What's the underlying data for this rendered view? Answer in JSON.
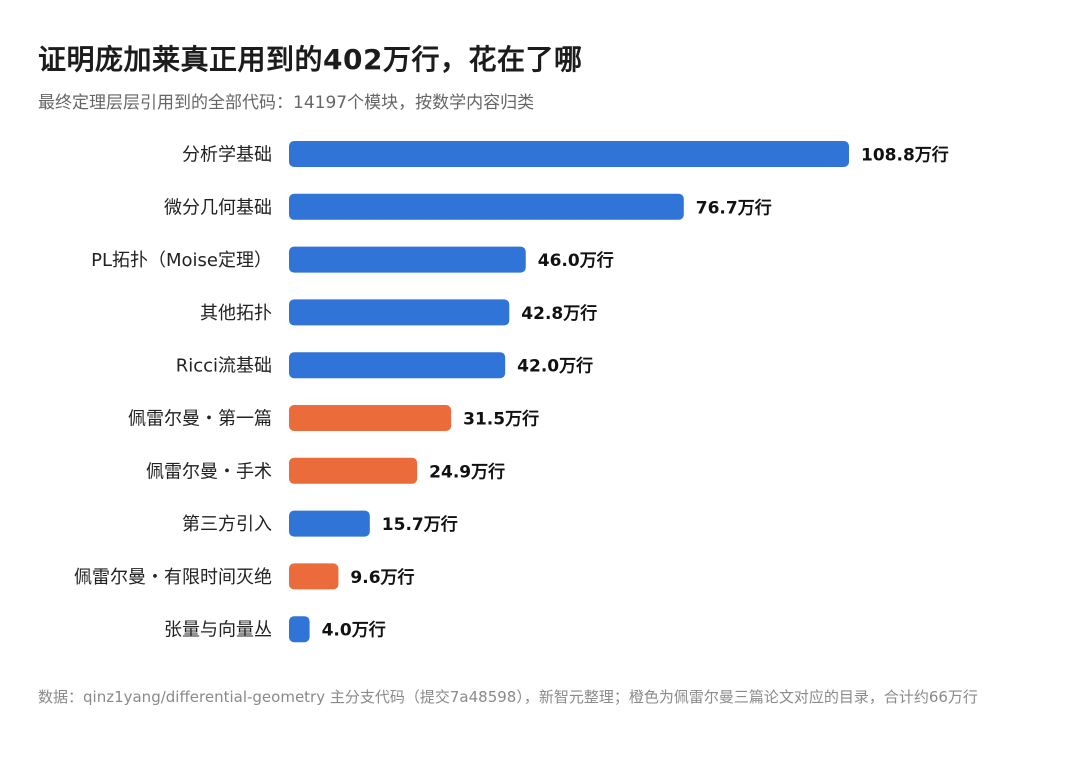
{
  "header": {
    "title": "证明庞加莱真正用到的402万行，花在了哪",
    "subtitle": "最终定理层层引用到的全部代码：14197个模块，按数学内容归类"
  },
  "footnote": {
    "text": "数据：qinz1yang/differential-geometry 主分支代码（提交7a48598），新智元整理；橙色为佩雷尔曼三篇论文对应的目录，合计约66万行"
  },
  "colors": {
    "blue": "#2f74d6",
    "orange": "#eb6b3a",
    "label_text": "#222222",
    "value_text": "#111111"
  },
  "chart_data": {
    "type": "bar",
    "orientation": "horizontal",
    "unit_suffix": "万行",
    "xlim": [
      0,
      108.8
    ],
    "grid": false,
    "categories": [
      "分析学基础",
      "微分几何基础",
      "PL拓扑（Moise定理）",
      "其他拓扑",
      "Ricci流基础",
      "佩雷尔曼・第一篇",
      "佩雷尔曼・手术",
      "第三方引入",
      "佩雷尔曼・有限时间灭绝",
      "张量与向量丛"
    ],
    "values": [
      108.8,
      76.7,
      46.0,
      42.8,
      42.0,
      31.5,
      24.9,
      15.7,
      9.6,
      4.0
    ],
    "value_labels": [
      "108.8万行",
      "76.7万行",
      "46.0万行",
      "42.8万行",
      "42.0万行",
      "31.5万行",
      "24.9万行",
      "15.7万行",
      "9.6万行",
      "4.0万行"
    ],
    "bar_colors": [
      "blue",
      "blue",
      "blue",
      "blue",
      "blue",
      "orange",
      "orange",
      "blue",
      "orange",
      "blue"
    ]
  }
}
